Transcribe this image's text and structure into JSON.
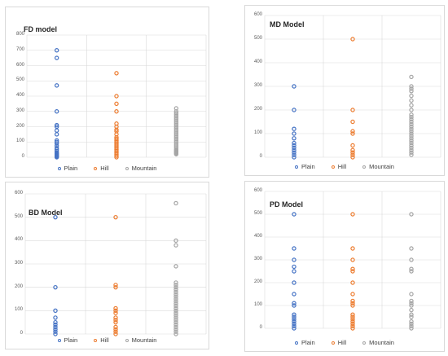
{
  "colors": {
    "Plain": "#4472c4",
    "Hill": "#ed7d31",
    "Mountain": "#a5a5a5",
    "grid": "#d9d9d9"
  },
  "chart_data": [
    {
      "type": "scatter",
      "title": "FD model",
      "ylim": [
        0,
        800
      ],
      "yticks": [
        "0",
        "100",
        "200",
        "300",
        "400",
        "500",
        "600",
        "700",
        "800"
      ],
      "grid": true,
      "legend_placement": "bottom",
      "series": [
        {
          "name": "Plain",
          "values": [
            0,
            5,
            10,
            15,
            20,
            25,
            30,
            40,
            50,
            60,
            75,
            90,
            100,
            110,
            150,
            175,
            200,
            210,
            300,
            470,
            650,
            700
          ]
        },
        {
          "name": "Hill",
          "values": [
            0,
            10,
            20,
            30,
            40,
            50,
            60,
            70,
            80,
            90,
            100,
            110,
            120,
            130,
            150,
            170,
            180,
            200,
            220,
            300,
            350,
            400,
            550
          ]
        },
        {
          "name": "Mountain",
          "values": [
            20,
            25,
            30,
            35,
            40,
            45,
            50,
            60,
            70,
            80,
            90,
            100,
            110,
            120,
            130,
            140,
            150,
            160,
            170,
            180,
            190,
            200,
            210,
            220,
            230,
            240,
            250,
            260,
            270,
            280,
            290,
            300,
            320
          ]
        }
      ]
    },
    {
      "type": "scatter",
      "title": "MD Model",
      "ylim": [
        0,
        600
      ],
      "yticks": [
        "0",
        "100",
        "200",
        "300",
        "400",
        "500",
        "600"
      ],
      "grid": true,
      "legend_placement": "bottom",
      "series": [
        {
          "name": "Plain",
          "values": [
            0,
            10,
            20,
            30,
            40,
            50,
            60,
            80,
            100,
            120,
            200,
            300
          ]
        },
        {
          "name": "Hill",
          "values": [
            0,
            10,
            20,
            30,
            50,
            100,
            110,
            150,
            200,
            500
          ]
        },
        {
          "name": "Mountain",
          "values": [
            10,
            20,
            30,
            40,
            50,
            60,
            70,
            80,
            90,
            100,
            110,
            120,
            130,
            140,
            150,
            160,
            170,
            180,
            200,
            220,
            240,
            260,
            280,
            290,
            300,
            340
          ]
        }
      ]
    },
    {
      "type": "scatter",
      "title": "BD Model",
      "ylim": [
        0,
        600
      ],
      "yticks": [
        "0",
        "100",
        "200",
        "300",
        "400",
        "500",
        "600"
      ],
      "grid": true,
      "legend_placement": "bottom",
      "series": [
        {
          "name": "Plain",
          "values": [
            0,
            10,
            20,
            30,
            40,
            50,
            70,
            100,
            200,
            500
          ]
        },
        {
          "name": "Hill",
          "values": [
            0,
            10,
            20,
            30,
            50,
            60,
            70,
            90,
            100,
            110,
            200,
            210,
            500
          ]
        },
        {
          "name": "Mountain",
          "values": [
            0,
            10,
            20,
            30,
            40,
            50,
            60,
            70,
            80,
            90,
            100,
            110,
            120,
            130,
            140,
            150,
            160,
            170,
            180,
            190,
            200,
            210,
            220,
            290,
            380,
            400,
            560
          ]
        }
      ]
    },
    {
      "type": "scatter",
      "title": "PD Model",
      "ylim": [
        0,
        600
      ],
      "yticks": [
        "0",
        "100",
        "200",
        "300",
        "400",
        "500",
        "600"
      ],
      "grid": true,
      "legend_placement": "bottom",
      "series": [
        {
          "name": "Plain",
          "values": [
            0,
            10,
            20,
            30,
            40,
            50,
            60,
            100,
            110,
            150,
            200,
            250,
            270,
            300,
            350,
            500
          ]
        },
        {
          "name": "Hill",
          "values": [
            0,
            10,
            20,
            30,
            40,
            50,
            60,
            100,
            110,
            120,
            150,
            200,
            250,
            260,
            300,
            350,
            500
          ]
        },
        {
          "name": "Mountain",
          "values": [
            0,
            10,
            20,
            30,
            50,
            60,
            80,
            100,
            110,
            120,
            150,
            250,
            260,
            300,
            350,
            500
          ]
        }
      ]
    }
  ]
}
